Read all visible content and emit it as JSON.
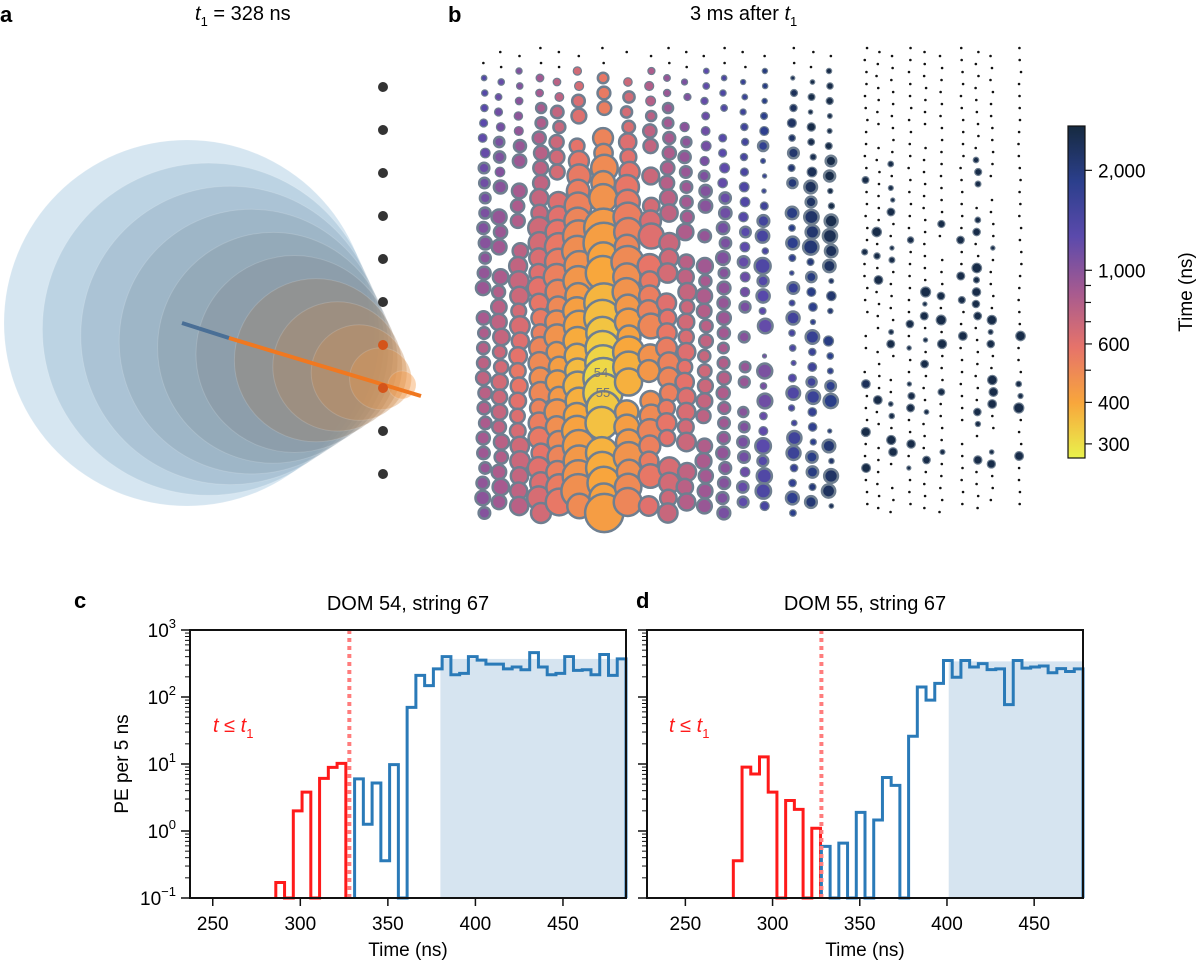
{
  "panel_a": {
    "letter": "a",
    "title_var": "t",
    "title_sub": "1",
    "title_rest": " = 328 ns",
    "colors": {
      "dom": "#333333",
      "hit_dom": "#d4541a",
      "track_early": "#4a6f96",
      "track_late": "#f07820",
      "sphere_far": "#9ec3de",
      "sphere_near": "#f59a4a"
    }
  },
  "panel_b": {
    "letter": "b",
    "title_pre": "3 ms after ",
    "title_var": "t",
    "title_sub": "1",
    "dom_labels": [
      "54",
      "55"
    ],
    "colorbar": {
      "label": "Time (ns)",
      "scale": "log",
      "range": [
        272,
        2720
      ],
      "ticks": [
        {
          "value": 2000,
          "label": "2,000"
        },
        {
          "value": 1000,
          "label": "1,000"
        },
        {
          "value": 600,
          "label": "600"
        },
        {
          "value": 400,
          "label": "400"
        },
        {
          "value": 300,
          "label": "300"
        }
      ],
      "minor_ticks": [
        500,
        700,
        800,
        900
      ],
      "colors": [
        "#e9f24c",
        "#f8a63c",
        "#e6736a",
        "#a65a90",
        "#5b4aac",
        "#2b3f8c",
        "#162a40"
      ]
    }
  },
  "chart_data": [
    {
      "type": "histogram-step",
      "letter": "c",
      "title": "DOM 54, string 67",
      "xlabel": "Time (ns)",
      "ylabel": "PE per 5 ns",
      "xlim": [
        237,
        486
      ],
      "ylim": [
        0.1,
        1000
      ],
      "yscale": "log",
      "xticks": [
        250,
        300,
        350,
        400,
        450
      ],
      "yticks": [
        {
          "value": 1000,
          "base": "10",
          "exp": "3"
        },
        {
          "value": 100,
          "base": "10",
          "exp": "2"
        },
        {
          "value": 10,
          "base": "10",
          "exp": "1"
        },
        {
          "value": 1,
          "base": "10",
          "exp": "0"
        },
        {
          "value": 0.1,
          "base": "10",
          "exp": "−1"
        }
      ],
      "bin_width": 5,
      "t1": 328,
      "annotation": {
        "var": "t",
        "op": " ≤ ",
        "var2": "t",
        "sub": "1"
      },
      "series": [
        {
          "color": "#ff1a1a",
          "start": 286,
          "values": [
            0.17,
            0,
            2.0,
            3.8,
            0,
            6.1,
            8.9,
            10.2
          ]
        },
        {
          "color": "#2a7ab8",
          "start": 331,
          "values": [
            6.0,
            1.26,
            5.2,
            0.36,
            9.8,
            0,
            70,
            210,
            148,
            263,
            400,
            215,
            225,
            400,
            355,
            310,
            310,
            263,
            280,
            255,
            460,
            280,
            215,
            225,
            400,
            250,
            255,
            215,
            430,
            210,
            370
          ]
        }
      ],
      "shaded": {
        "from": 380,
        "to": 486,
        "level": 370,
        "color": "#d6e4f0"
      }
    },
    {
      "type": "histogram-step",
      "letter": "d",
      "title": "DOM 55, string 67",
      "xlabel": "Time (ns)",
      "xlim": [
        228,
        478
      ],
      "ylim": [
        0.1,
        1000
      ],
      "yscale": "log",
      "xticks": [
        250,
        300,
        350,
        400,
        450
      ],
      "bin_width": 5,
      "t1": 328,
      "annotation": {
        "var": "t",
        "op": " ≤ ",
        "var2": "t",
        "sub": "1"
      },
      "series": [
        {
          "color": "#ff1a1a",
          "start": 277.5,
          "values": [
            0.36,
            9.0,
            7.1,
            12.8,
            3.8,
            0,
            2.85,
            2.1,
            0,
            1.1
          ]
        },
        {
          "color": "#2a7ab8",
          "start": 328,
          "values": [
            0.59,
            0,
            0.66,
            0,
            1.9,
            0,
            1.46,
            6.3,
            4.8,
            0,
            26,
            141,
            90,
            160,
            350,
            197,
            350,
            280,
            315,
            256,
            263,
            77,
            350,
            270,
            280,
            290,
            230,
            265,
            240,
            263
          ]
        }
      ],
      "shaded": {
        "from": 401,
        "to": 478,
        "level": 340,
        "color": "#d6e4f0"
      }
    }
  ]
}
